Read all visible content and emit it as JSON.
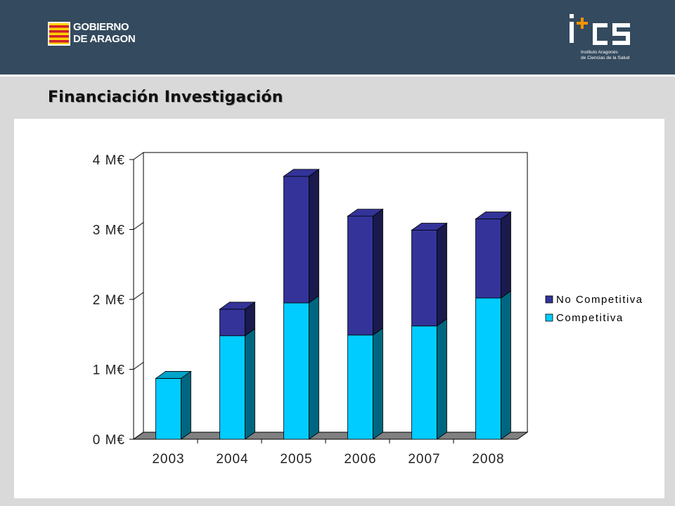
{
  "header": {
    "gov_logo": {
      "line1": "GOBIERNO",
      "line2": "DE ARAGON"
    },
    "ics_logo": {
      "mark": "i+cs",
      "sub_line1": "Instituto Aragonés",
      "sub_line2": "de Ciencias de la Salud"
    }
  },
  "slide": {
    "title": "Financiación Investigación"
  },
  "colors": {
    "header_bg": "#344a5e",
    "competitiva": "#00ccff",
    "no_competitiva": "#333399",
    "floor": "#808080"
  },
  "chart_data": {
    "type": "bar",
    "stacked": true,
    "three_d": true,
    "categories": [
      "2003",
      "2004",
      "2005",
      "2006",
      "2007",
      "2008"
    ],
    "series": [
      {
        "name": "Competitiva",
        "values": [
          0.87,
          1.48,
          1.95,
          1.49,
          1.62,
          2.02
        ],
        "color": "#00ccff"
      },
      {
        "name": "No Competitiva",
        "values": [
          0.0,
          0.38,
          1.81,
          1.7,
          1.37,
          1.13
        ],
        "color": "#333399"
      }
    ],
    "ylim": [
      0,
      4
    ],
    "y_ticks": [
      0,
      1,
      2,
      3,
      4
    ],
    "y_tick_labels": [
      "0 M€",
      "1 M€",
      "2 M€",
      "3 M€",
      "4 M€"
    ],
    "grid": false,
    "legend": {
      "placement": "right",
      "entries": [
        "No Competitiva",
        "Competitiva"
      ]
    },
    "title": "",
    "xlabel": "",
    "ylabel": ""
  }
}
